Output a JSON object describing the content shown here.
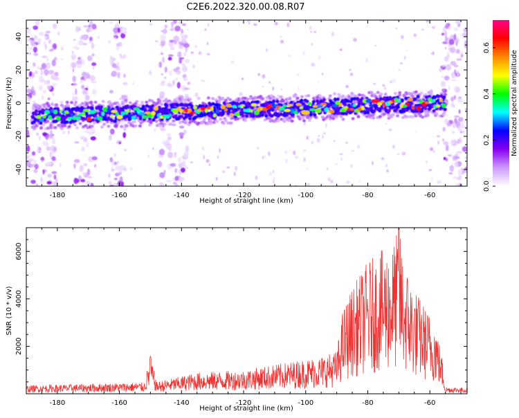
{
  "title": "C2E6.2022.320.00.08.R07",
  "chart_data": [
    {
      "type": "heatmap",
      "xlabel": "Height of straight line (km)",
      "ylabel": "Frequency (Hz)",
      "xlim": [
        -190,
        -48
      ],
      "ylim": [
        -50,
        50
      ],
      "x_ticks": [
        -180,
        -160,
        -140,
        -120,
        -100,
        -80,
        -60
      ],
      "y_ticks": [
        -40,
        -20,
        0,
        20,
        40
      ],
      "colorbar": {
        "label": "Normalized spectral amplitude",
        "range": [
          0.0,
          0.72
        ],
        "ticks": [
          0.0,
          0.2,
          0.4,
          0.6
        ],
        "colormap": [
          "#ffffff",
          "#cc99ff",
          "#8800ee",
          "#0000ff",
          "#00ffff",
          "#00ff00",
          "#ffff00",
          "#ff8800",
          "#ff0000",
          "#ff0088"
        ]
      },
      "band": {
        "description": "Narrow band of high spectral amplitude",
        "x_range": [
          -188,
          -55
        ],
        "center_freq_start": -8,
        "center_freq_end": 0,
        "peak_amplitude": 0.7
      },
      "bursts": [
        {
          "x_range": [
            -190,
            -180
          ],
          "freq_range": [
            -50,
            50
          ]
        },
        {
          "x_range": [
            -175,
            -168
          ],
          "freq_range": [
            -50,
            50
          ]
        },
        {
          "x_range": [
            -163,
            -158
          ],
          "freq_range": [
            -50,
            50
          ]
        },
        {
          "x_range": [
            -147,
            -138
          ],
          "freq_range": [
            -50,
            50
          ]
        },
        {
          "x_range": [
            -56,
            -48
          ],
          "freq_range": [
            -50,
            50
          ]
        }
      ]
    },
    {
      "type": "line",
      "xlabel": "Height of straight line (km)",
      "ylabel": "SNR (10 * v/v)",
      "xlim": [
        -190,
        -48
      ],
      "ylim": [
        0,
        7000
      ],
      "x_ticks": [
        -180,
        -160,
        -140,
        -120,
        -100,
        -80,
        -60
      ],
      "y_ticks": [
        2000,
        4000,
        6000
      ],
      "color": "#ee3333",
      "envelope": {
        "x": [
          -190,
          -170,
          -152,
          -150,
          -148,
          -135,
          -120,
          -105,
          -95,
          -90,
          -88,
          -85,
          -80,
          -75,
          -72,
          -70,
          -68,
          -65,
          -62,
          -58,
          -56,
          -55,
          -48
        ],
        "y": [
          350,
          420,
          480,
          1600,
          500,
          900,
          1000,
          1350,
          1600,
          1800,
          3600,
          4500,
          5600,
          6100,
          6300,
          7000,
          5500,
          4500,
          3800,
          3000,
          1500,
          300,
          250
        ]
      }
    }
  ]
}
